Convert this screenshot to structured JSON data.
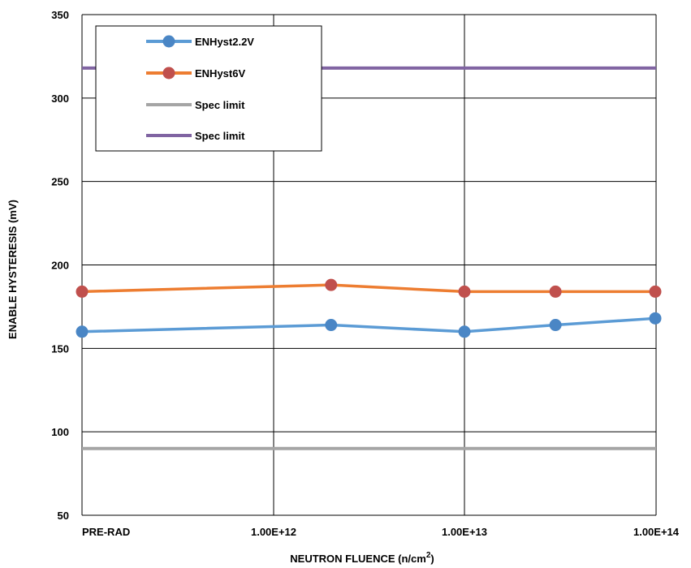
{
  "chart_data": {
    "type": "line",
    "xlabel": "NEUTRON FLUENCE (n/cm",
    "xlabel_superscript": "2",
    "xlabel_suffix": ")",
    "ylabel": "ENABLE HYSTERESIS (mV)",
    "x_scale": "log",
    "x_tick_labels": [
      "PRE-RAD",
      "1.00E+12",
      "1.00E+13",
      "1.00E+14"
    ],
    "y_ticks": [
      50,
      100,
      150,
      200,
      250,
      300,
      350
    ],
    "ylim": [
      50,
      350
    ],
    "grid": true,
    "legend_position": "top-left",
    "x_categories": [
      "PRE-RAD",
      "2.00E+12",
      "1.00E+13",
      "3.00E+13",
      "1.00E+14"
    ],
    "series": [
      {
        "name": "ENHyst2.2V",
        "color": "#5b9bd5",
        "marker": "circle",
        "marker_color": "#4a86c5",
        "values": [
          160,
          164,
          160,
          164,
          168
        ]
      },
      {
        "name": "ENHyst6V",
        "color": "#ed7d31",
        "marker": "circle",
        "marker_color": "#c0504d",
        "values": [
          184,
          188,
          184,
          184,
          184
        ]
      },
      {
        "name": "Spec limit",
        "color": "#a5a5a5",
        "marker": "none",
        "constant": 90
      },
      {
        "name": "Spec limit",
        "color": "#8064a2",
        "marker": "none",
        "constant": 318
      }
    ]
  }
}
